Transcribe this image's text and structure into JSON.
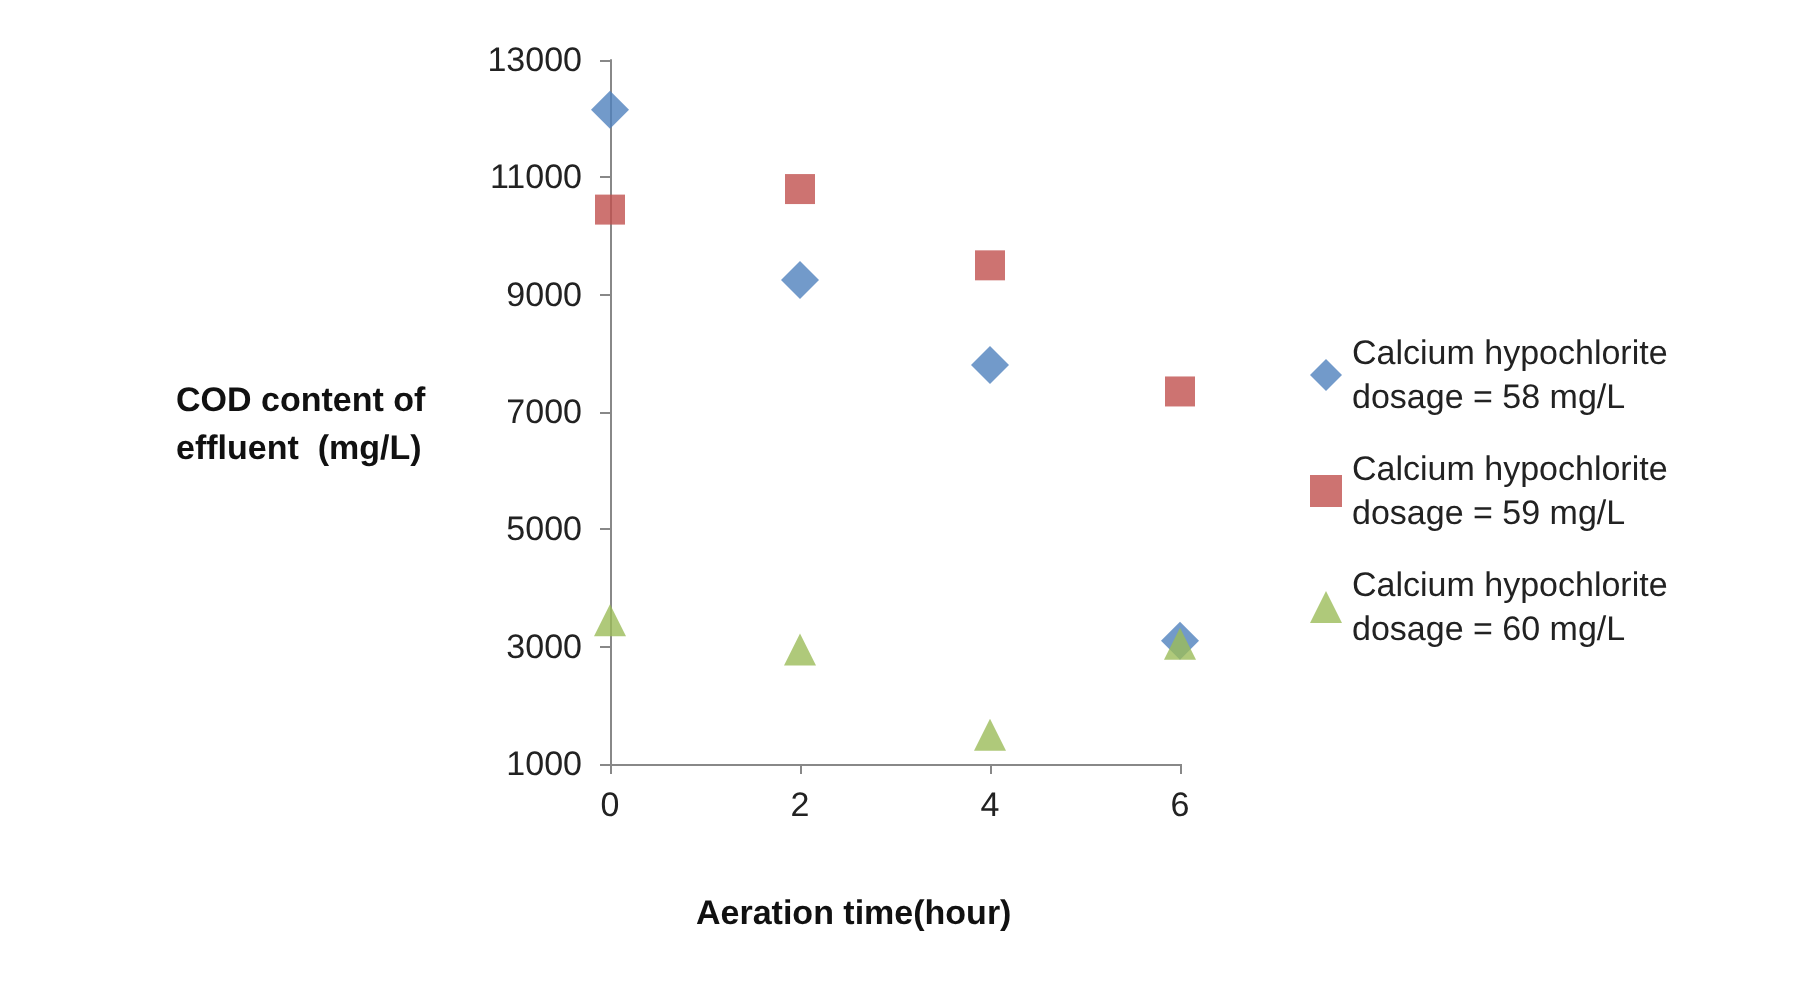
{
  "chart_data": {
    "type": "scatter",
    "xlabel": "Aeration time(hour)",
    "ylabel": "COD content of effluent  (mg/L)",
    "x": [
      0,
      2,
      4,
      6
    ],
    "series": [
      {
        "name": "Calcium hypochlorite dosage = 58 mg/L",
        "color": "#4f81bd",
        "marker": "diamond",
        "values": [
          12150,
          9250,
          7800,
          3100
        ]
      },
      {
        "name": "Calcium hypochlorite dosage = 59 mg/L",
        "color": "#c0504d",
        "marker": "square",
        "values": [
          10450,
          10800,
          9500,
          7350
        ]
      },
      {
        "name": "Calcium hypochlorite dosage = 60 mg/L",
        "color": "#9bbb59",
        "marker": "triangle",
        "values": [
          3450,
          2950,
          1500,
          3050
        ]
      }
    ],
    "xlim": [
      0,
      6
    ],
    "xticks": [
      0,
      2,
      4,
      6
    ],
    "ylim": [
      1000,
      13000
    ],
    "yticks": [
      1000,
      3000,
      5000,
      7000,
      9000,
      11000,
      13000
    ],
    "grid": false,
    "legend": "right"
  }
}
